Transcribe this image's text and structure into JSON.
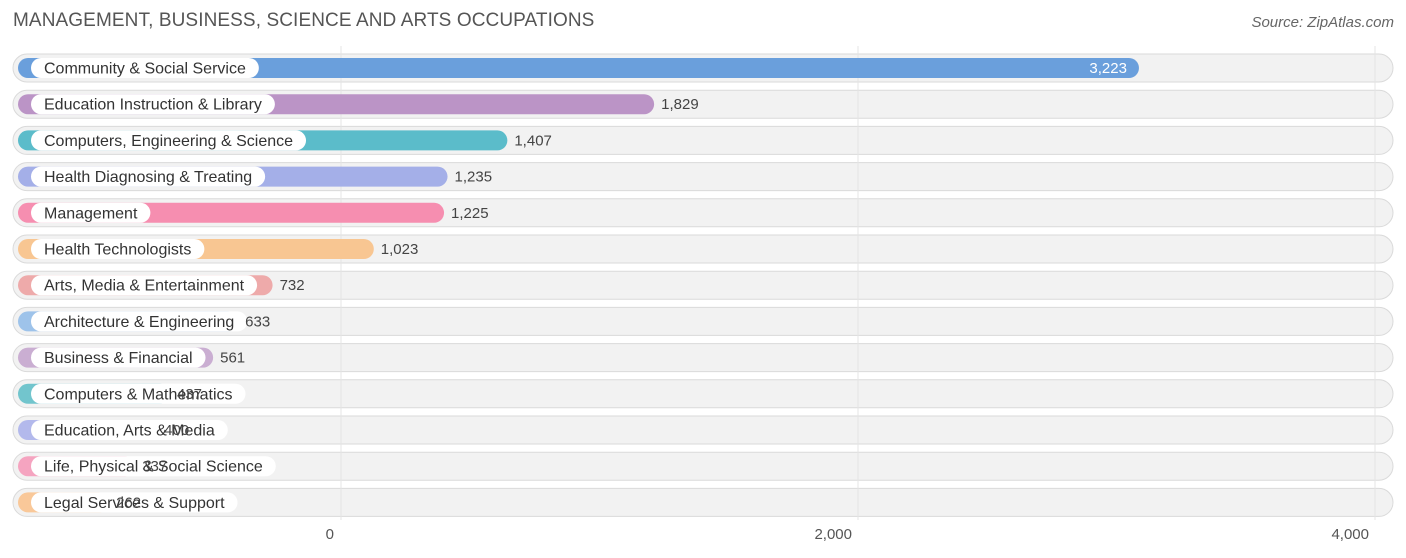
{
  "header": {
    "title": "MANAGEMENT, BUSINESS, SCIENCE AND ARTS OCCUPATIONS",
    "source": "Source: ZipAtlas.com"
  },
  "chart_data": {
    "type": "bar",
    "orientation": "horizontal",
    "title": "MANAGEMENT, BUSINESS, SCIENCE AND ARTS OCCUPATIONS",
    "xlabel": "",
    "ylabel": "",
    "xlim": [
      0,
      4000
    ],
    "grid": true,
    "legend": "none",
    "x_ticks": [
      {
        "value": 0,
        "label": "0"
      },
      {
        "value": 2000,
        "label": "2,000"
      },
      {
        "value": 4000,
        "label": "4,000"
      }
    ],
    "categories": [
      "Community & Social Service",
      "Education Instruction & Library",
      "Computers, Engineering & Science",
      "Health Diagnosing & Treating",
      "Management",
      "Health Technologists",
      "Arts, Media & Entertainment",
      "Architecture & Engineering",
      "Business & Financial",
      "Computers & Mathematics",
      "Education, Arts & Media",
      "Life, Physical & Social Science",
      "Legal Services & Support"
    ],
    "values": [
      3223,
      1829,
      1407,
      1235,
      1225,
      1023,
      732,
      633,
      561,
      437,
      400,
      337,
      262
    ],
    "value_labels": [
      "3,223",
      "1,829",
      "1,407",
      "1,235",
      "1,225",
      "1,023",
      "732",
      "633",
      "561",
      "437",
      "400",
      "337",
      "262"
    ],
    "colors": [
      "#6a9fdc",
      "#bb94c6",
      "#5bbcca",
      "#a4afe8",
      "#f68eb0",
      "#f8c692",
      "#eeaaaa",
      "#9ec3ea",
      "#caaed2",
      "#72c5cd",
      "#b3b9ec",
      "#f5a4c0",
      "#f9c899"
    ]
  }
}
